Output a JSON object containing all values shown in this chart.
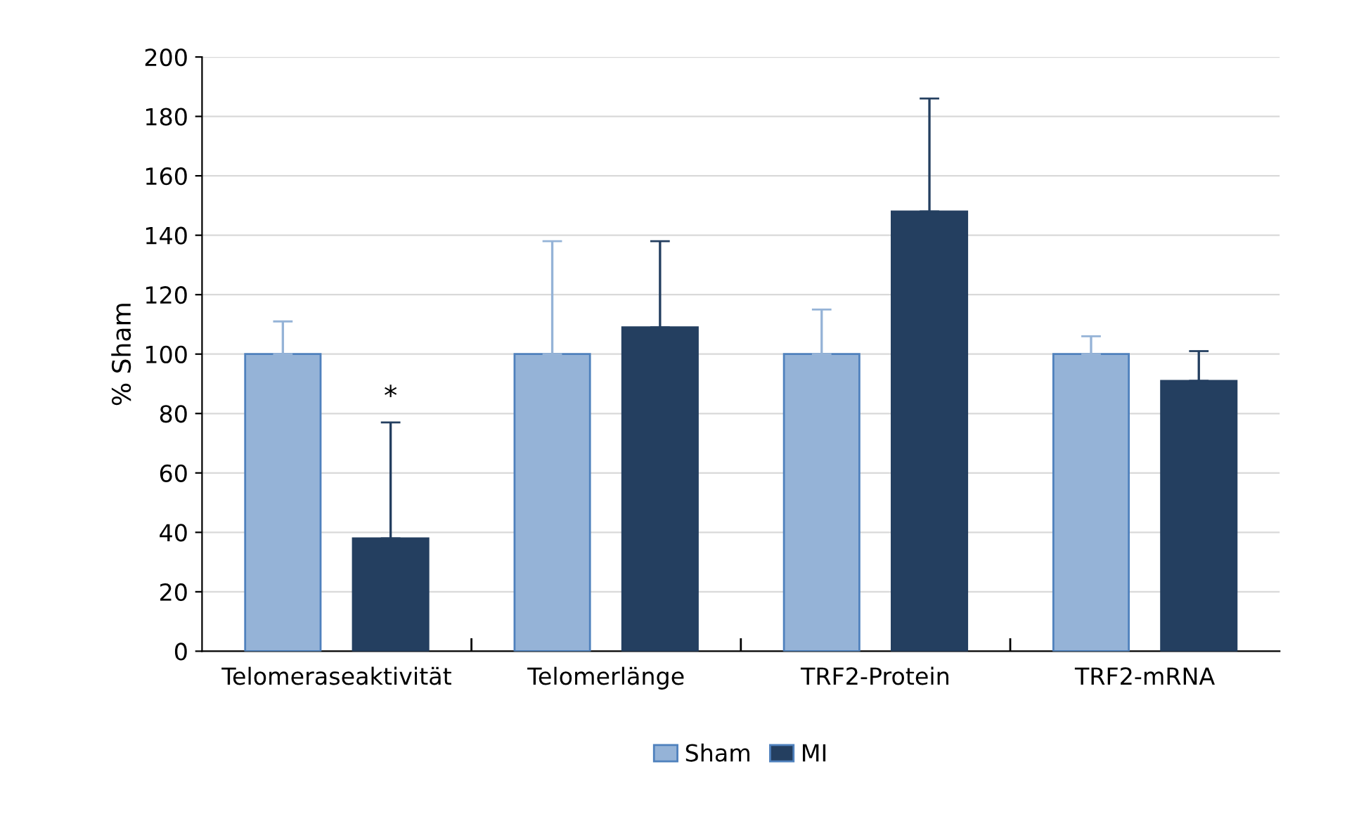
{
  "chart_data": {
    "type": "bar",
    "ylabel": "% Sham",
    "categories": [
      "Telomeraseaktivität",
      "Telomerlänge",
      "TRF2-Protein",
      "TRF2-mRNA"
    ],
    "series": [
      {
        "name": "Sham",
        "color": "#95b3d7",
        "values": [
          100,
          100,
          100,
          100
        ],
        "errors": [
          [
            100,
            111
          ],
          [
            100,
            138
          ],
          [
            100,
            115
          ],
          [
            100,
            106
          ]
        ]
      },
      {
        "name": "MI",
        "color": "#243f60",
        "values": [
          38,
          109,
          148,
          91
        ],
        "errors": [
          [
            38,
            77
          ],
          [
            109,
            138
          ],
          [
            148,
            186
          ],
          [
            91,
            101
          ]
        ]
      }
    ],
    "ylim": [
      0,
      200
    ],
    "yticks": [
      0,
      20,
      40,
      60,
      80,
      100,
      120,
      140,
      160,
      180,
      200
    ],
    "grid": "y",
    "legend": "bottom",
    "annotations": [
      "*"
    ]
  }
}
